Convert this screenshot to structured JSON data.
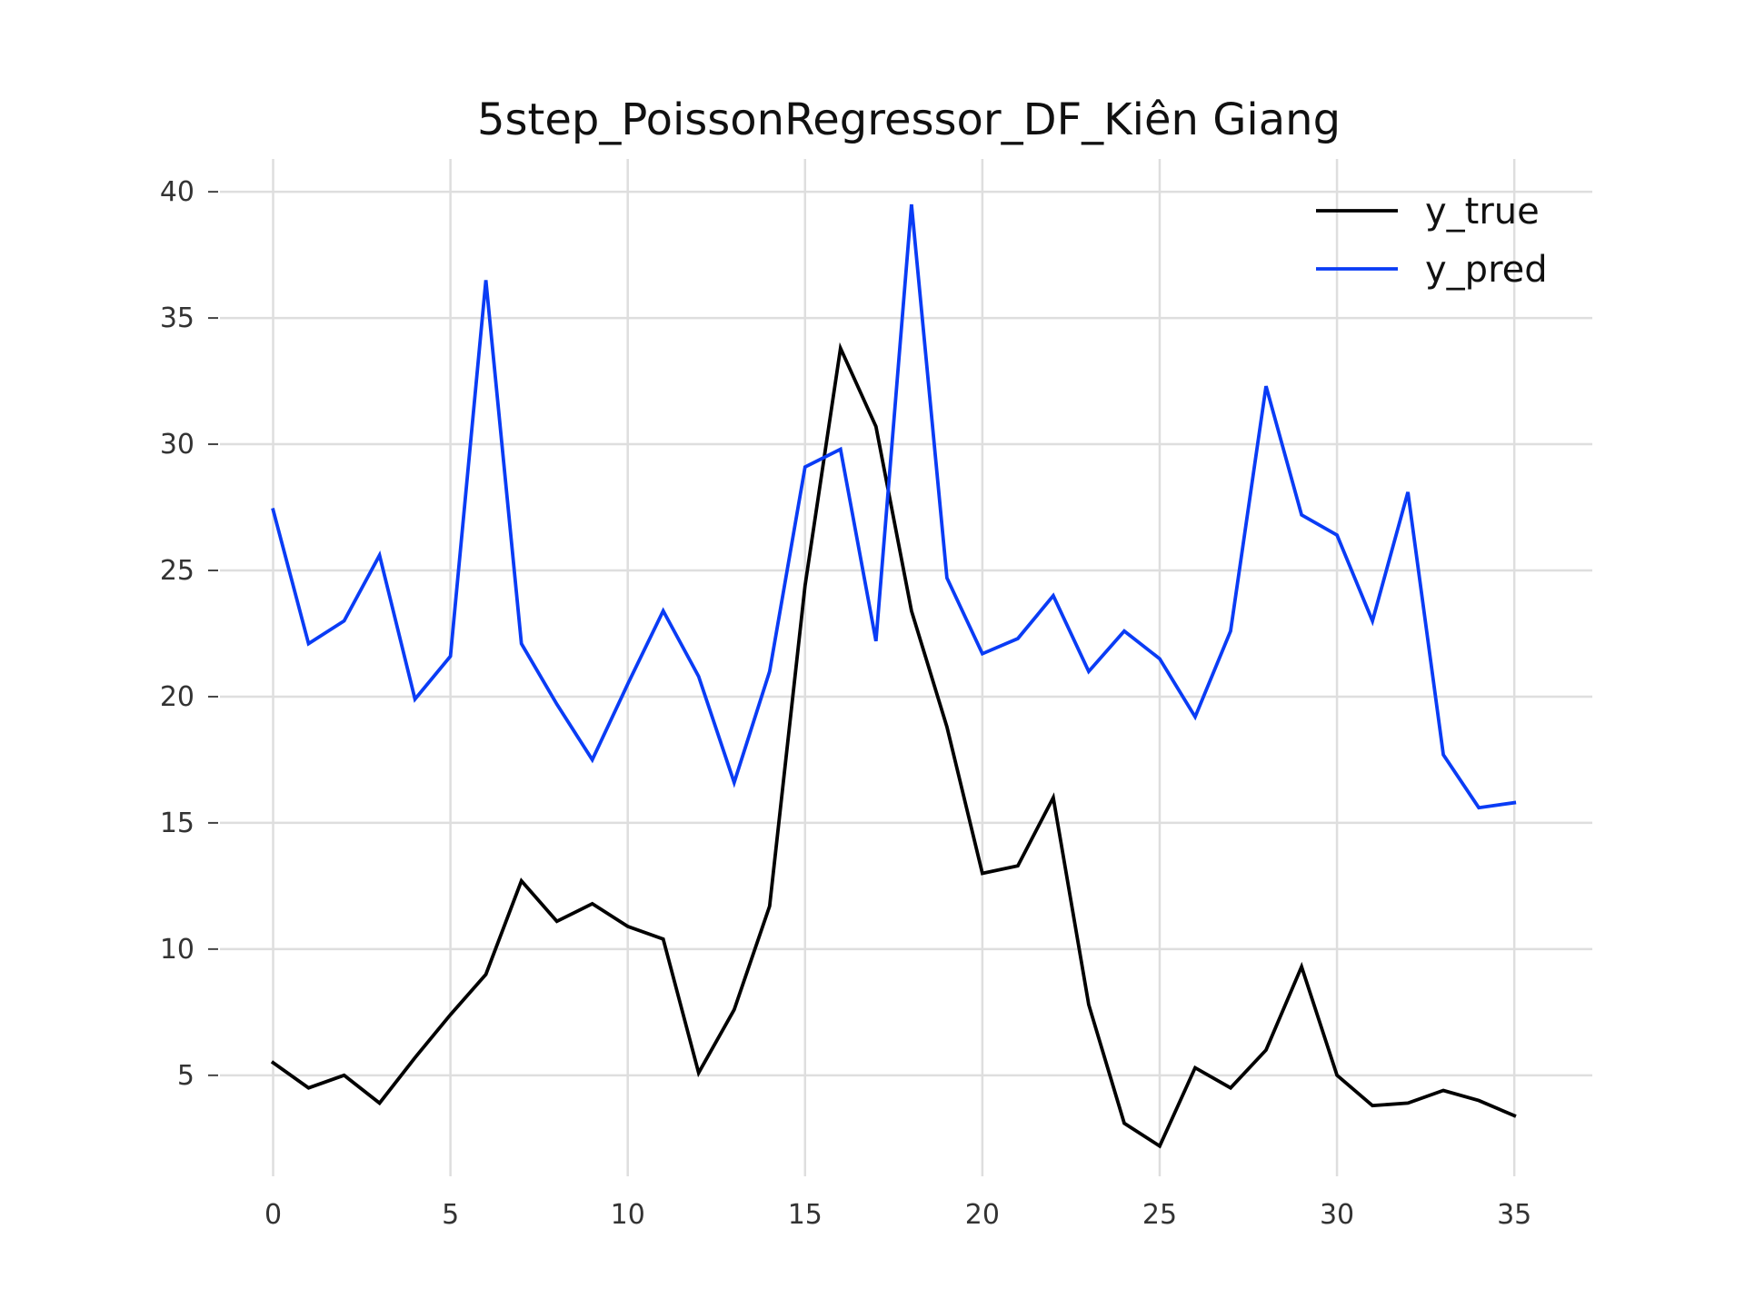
{
  "chart_data": {
    "type": "line",
    "title": "5step_PoissonRegressor_DF_Kiên Giang",
    "xlabel": "",
    "ylabel": "",
    "x": [
      0,
      1,
      2,
      3,
      4,
      5,
      6,
      7,
      8,
      9,
      10,
      11,
      12,
      13,
      14,
      15,
      16,
      17,
      18,
      19,
      20,
      21,
      22,
      23,
      24,
      25,
      26,
      27,
      28,
      29,
      30,
      31,
      32,
      33,
      34,
      35
    ],
    "xlim": [
      -1.5,
      37.2
    ],
    "ylim": [
      1.0,
      41.3
    ],
    "xticks": [
      0,
      5,
      10,
      15,
      20,
      25,
      30,
      35
    ],
    "yticks": [
      5,
      10,
      15,
      20,
      25,
      30,
      35,
      40
    ],
    "grid": true,
    "legend_position": "top-right",
    "series": [
      {
        "name": "y_true",
        "color": "#000000",
        "values": [
          5.5,
          4.5,
          5.0,
          3.9,
          5.7,
          7.4,
          9.0,
          12.7,
          11.1,
          11.8,
          10.9,
          10.4,
          5.1,
          7.6,
          11.7,
          24.4,
          33.8,
          30.7,
          23.4,
          18.8,
          13.0,
          13.3,
          16.0,
          7.8,
          3.1,
          2.2,
          5.3,
          4.5,
          6.0,
          9.3,
          5.0,
          3.8,
          3.9,
          4.4,
          4.0,
          3.4
        ]
      },
      {
        "name": "y_pred",
        "color": "#0a3cf5",
        "values": [
          27.4,
          22.1,
          23.0,
          25.6,
          19.9,
          21.6,
          36.5,
          22.1,
          19.7,
          17.5,
          20.5,
          23.4,
          20.8,
          16.6,
          21.0,
          29.1,
          29.8,
          22.2,
          39.5,
          24.7,
          21.7,
          22.3,
          24.0,
          21.0,
          22.6,
          21.5,
          19.2,
          22.6,
          32.3,
          27.2,
          26.4,
          23.0,
          28.1,
          17.7,
          15.6,
          15.8
        ]
      }
    ]
  }
}
